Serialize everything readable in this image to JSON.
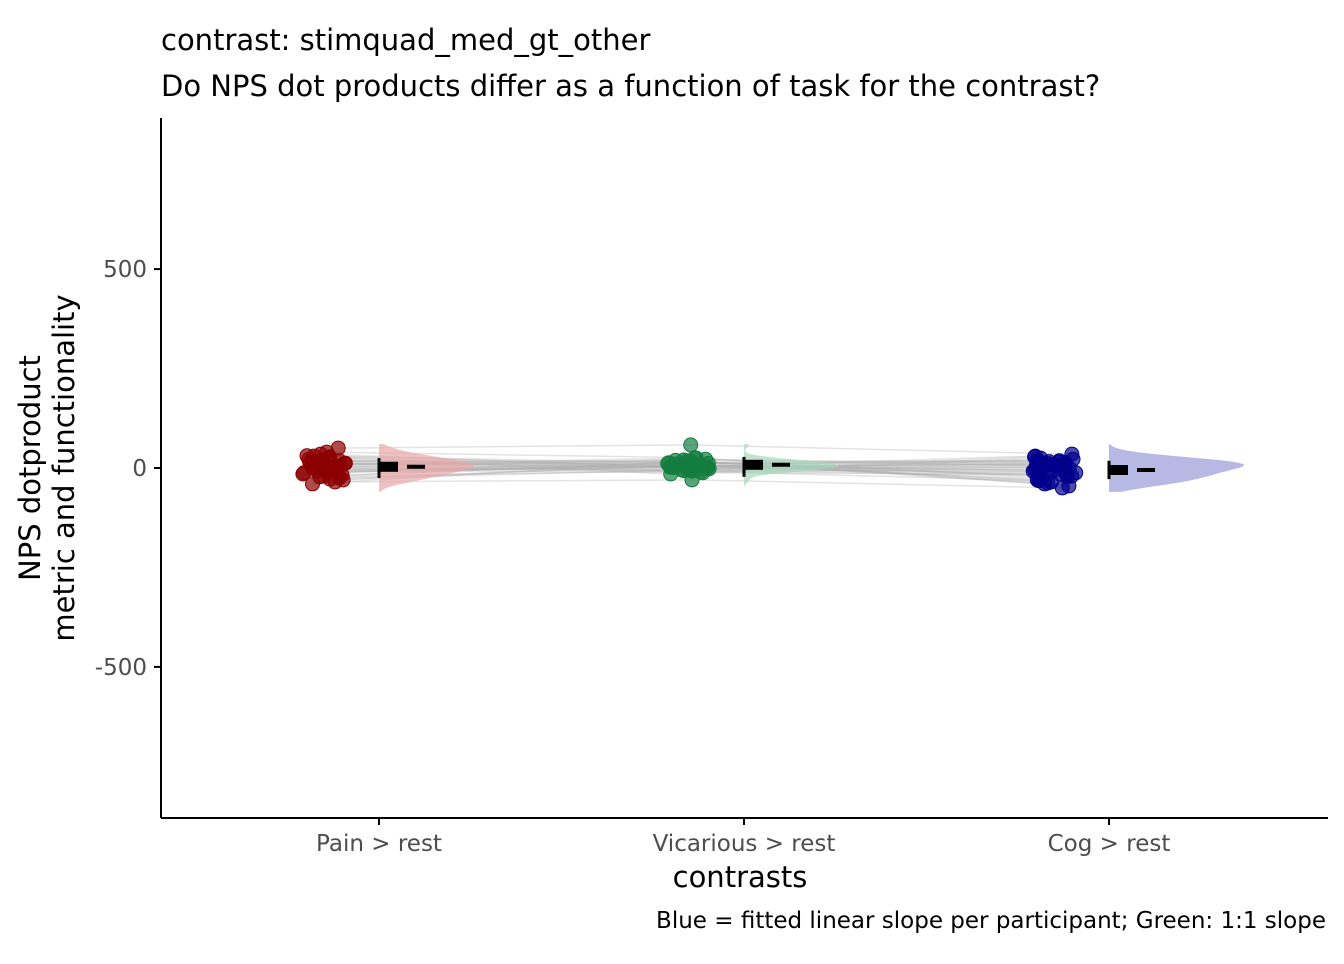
{
  "chart_data": {
    "type": "scatter",
    "title": "contrast:  stimquad_med_gt_other",
    "subtitle": "Do NPS dot products differ as a function of task for the contrast?",
    "xlabel": "contrasts",
    "ylabel_line1": "NPS dotproduct",
    "ylabel_line2": "metric and functionality",
    "caption": "Blue = fitted linear slope per participant; Green: 1:1 slope",
    "categories": [
      "Pain > rest",
      "Vicarious > rest",
      "Cog > rest"
    ],
    "yticks": [
      "500",
      "0",
      "-500"
    ],
    "ytick_values": [
      500,
      0,
      -500
    ],
    "ylim": [
      -880,
      880
    ],
    "grid": false,
    "colors": {
      "pain": "#8b0000",
      "vicarious": "#137e3f",
      "cog": "#00008b",
      "paired_lines": "#b0b0b0",
      "summary": "#000000"
    },
    "series": [
      {
        "values": [
          5,
          -10,
          20,
          30,
          50,
          -35,
          -20,
          10,
          0,
          -15,
          25,
          -5,
          15,
          -25,
          8,
          35,
          -40,
          12,
          -8,
          3,
          18,
          -12,
          28,
          -30,
          6,
          -3,
          22,
          -18,
          14,
          -6,
          40,
          9,
          -22,
          2,
          31,
          -28,
          11,
          -1,
          17,
          -9
        ]
      },
      {
        "values": [
          2,
          8,
          -5,
          12,
          58,
          -30,
          15,
          5,
          -8,
          20,
          3,
          -12,
          10,
          6,
          25,
          -2,
          18,
          0,
          7,
          -6,
          14,
          4,
          -15,
          9,
          22,
          -4,
          1,
          16,
          -10,
          11,
          26,
          13,
          -7,
          19,
          5,
          -3,
          8,
          -1,
          17,
          3
        ]
      },
      {
        "values": [
          -10,
          5,
          -20,
          15,
          35,
          -50,
          -30,
          0,
          28,
          -40,
          10,
          -15,
          20,
          -5,
          -25,
          8,
          -35,
          12,
          -8,
          2,
          18,
          -18,
          25,
          -28,
          6,
          -12,
          30,
          -22,
          -2,
          14,
          -45,
          9,
          -32,
          16,
          -6,
          22,
          -16,
          3,
          -38,
          11
        ]
      }
    ],
    "summary": [
      {
        "mean": 3,
        "ci_low": -25,
        "ci_high": 25
      },
      {
        "mean": 8,
        "ci_low": -22,
        "ci_high": 28
      },
      {
        "mean": -5,
        "ci_low": -28,
        "ci_high": 18
      }
    ]
  }
}
